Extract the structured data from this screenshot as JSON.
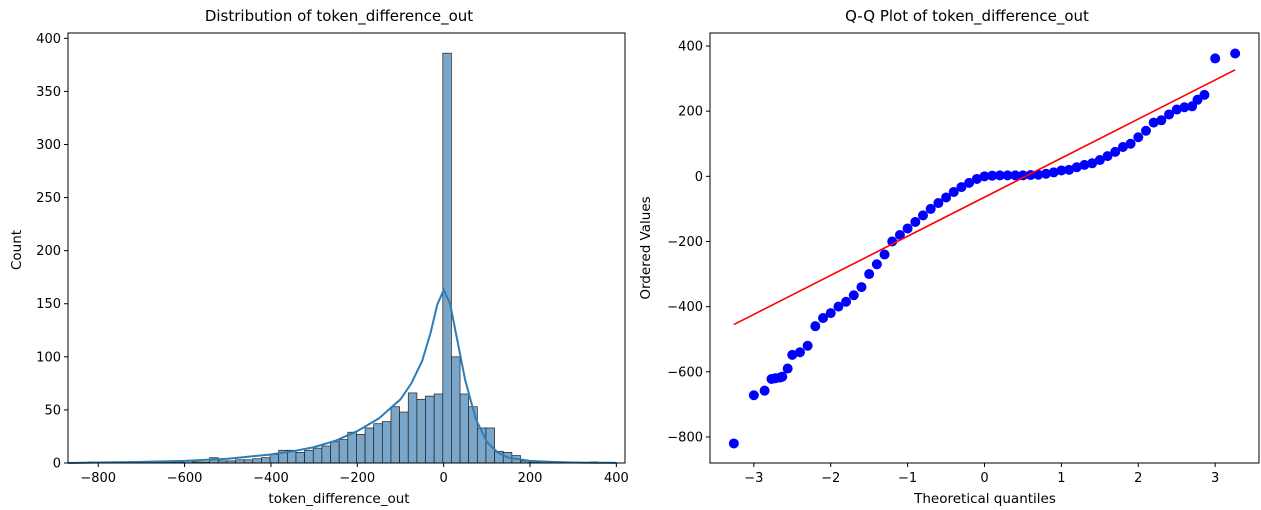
{
  "chart_data": [
    {
      "type": "bar",
      "title": "Distribution of token_difference_out",
      "xlabel": "token_difference_out",
      "ylabel": "Count",
      "xlim": [
        -870,
        420
      ],
      "ylim": [
        0,
        405
      ],
      "xticks": [
        -800,
        -600,
        -400,
        -200,
        0,
        200,
        400
      ],
      "yticks": [
        0,
        50,
        100,
        150,
        200,
        250,
        300,
        350,
        400
      ],
      "xtick_labels": [
        "−800",
        "−600",
        "−400",
        "−200",
        "0",
        "200",
        "400"
      ],
      "ytick_labels": [
        "0",
        "50",
        "100",
        "150",
        "200",
        "250",
        "300",
        "350",
        "400"
      ],
      "bin_edges": [
        -822,
        -802,
        -782,
        -762,
        -742,
        -722,
        -702,
        -682,
        -662,
        -642,
        -622,
        -602,
        -582,
        -562,
        -542,
        -522,
        -502,
        -482,
        -462,
        -442,
        -422,
        -402,
        -382,
        -362,
        -342,
        -322,
        -302,
        -282,
        -262,
        -242,
        -222,
        -202,
        -182,
        -162,
        -142,
        -122,
        -102,
        -82,
        -62,
        -42,
        -22,
        -2,
        18,
        38,
        58,
        78,
        98,
        118,
        138,
        158,
        178,
        198,
        218,
        238,
        258,
        278,
        298,
        318,
        338,
        358,
        378
      ],
      "counts": [
        1,
        0,
        0,
        0,
        0,
        0,
        0,
        0,
        1,
        1,
        1,
        2,
        1,
        1,
        5,
        2,
        2,
        3,
        3,
        4,
        5,
        8,
        12,
        12,
        10,
        12,
        14,
        16,
        20,
        22,
        29,
        27,
        33,
        37,
        39,
        53,
        48,
        66,
        60,
        63,
        65,
        386,
        100,
        65,
        53,
        33,
        33,
        11,
        10,
        7,
        2,
        1,
        1,
        0,
        0,
        0,
        0,
        0,
        1,
        0,
        1
      ],
      "kde": {
        "x": [
          -870,
          -800,
          -700,
          -600,
          -500,
          -450,
          -400,
          -350,
          -300,
          -250,
          -200,
          -150,
          -100,
          -75,
          -50,
          -30,
          -15,
          0,
          15,
          30,
          50,
          75,
          100,
          125,
          150,
          200,
          250,
          300,
          350,
          380,
          400
        ],
        "y": [
          0,
          0.5,
          1,
          2,
          4,
          6,
          8,
          11,
          15,
          21,
          30,
          42,
          60,
          75,
          96,
          123,
          149,
          163,
          150,
          119,
          78,
          41,
          20,
          10,
          5,
          2,
          1,
          0.5,
          0.3,
          0.2,
          0.1
        ]
      },
      "colors": {
        "bar_fill": "#7aa7c9",
        "bar_edge": "#1f1f1f",
        "kde": "#2e7db6"
      }
    },
    {
      "type": "scatter",
      "title": "Q-Q Plot of token_difference_out",
      "xlabel": "Theoretical quantiles",
      "ylabel": "Ordered Values",
      "xlim": [
        -3.57,
        3.57
      ],
      "ylim": [
        -880,
        440
      ],
      "xticks": [
        -3,
        -2,
        -1,
        0,
        1,
        2,
        3
      ],
      "yticks": [
        -800,
        -600,
        -400,
        -200,
        0,
        200,
        400
      ],
      "xtick_labels": [
        "−3",
        "−2",
        "−1",
        "0",
        "1",
        "2",
        "3"
      ],
      "ytick_labels": [
        "−800",
        "−600",
        "−400",
        "−200",
        "0",
        "200",
        "400"
      ],
      "points": {
        "x": [
          -3.26,
          -3.0,
          -2.86,
          -2.77,
          -2.72,
          -2.66,
          -2.63,
          -2.56,
          -2.5,
          -2.4,
          -2.3,
          -2.2,
          -2.1,
          -2.0,
          -1.9,
          -1.8,
          -1.7,
          -1.6,
          -1.5,
          -1.4,
          -1.3,
          -1.2,
          -1.1,
          -1.0,
          -0.9,
          -0.8,
          -0.7,
          -0.6,
          -0.5,
          -0.4,
          -0.3,
          -0.2,
          -0.1,
          0.0,
          0.1,
          0.2,
          0.3,
          0.4,
          0.5,
          0.6,
          0.7,
          0.8,
          0.9,
          1.0,
          1.1,
          1.2,
          1.3,
          1.4,
          1.5,
          1.6,
          1.7,
          1.8,
          1.9,
          2.0,
          2.1,
          2.2,
          2.3,
          2.4,
          2.5,
          2.6,
          2.7,
          2.77,
          2.86,
          3.0,
          3.26
        ],
        "y": [
          -820,
          -672,
          -658,
          -622,
          -620,
          -618,
          -615,
          -590,
          -548,
          -540,
          -520,
          -460,
          -435,
          -420,
          -400,
          -385,
          -365,
          -340,
          -300,
          -270,
          -240,
          -200,
          -180,
          -160,
          -140,
          -120,
          -100,
          -82,
          -65,
          -48,
          -33,
          -20,
          -8,
          0,
          2,
          3,
          3,
          3,
          3,
          4,
          5,
          8,
          12,
          18,
          20,
          28,
          35,
          40,
          50,
          62,
          75,
          90,
          100,
          120,
          140,
          165,
          172,
          190,
          205,
          212,
          215,
          235,
          250,
          362,
          377
        ]
      },
      "fit_line": {
        "x": [
          -3.26,
          3.26
        ],
        "y": [
          -455,
          327
        ]
      },
      "colors": {
        "points": "#0000ff",
        "fit_line": "#ff0000"
      }
    }
  ]
}
